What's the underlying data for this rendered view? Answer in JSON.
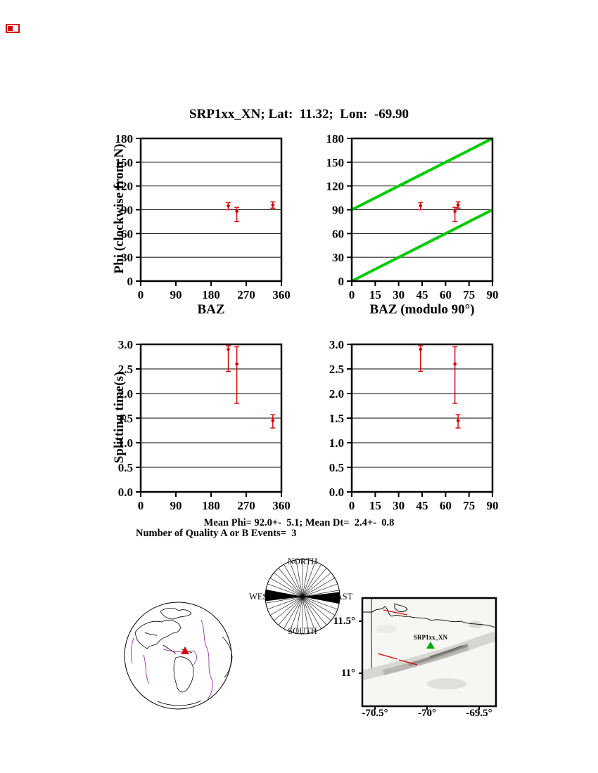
{
  "page": {
    "title": "SRP1xx_XN; Lat:  11.32;  Lon:  -69.90"
  },
  "stats": {
    "mean_line": "Mean Phi= 92.0+-  5.1; Mean Dt=  2.4+-  0.8",
    "events_line": "Number of Quality A or B Events=  3"
  },
  "chart_data": [
    {
      "id": "phi_baz",
      "type": "scatter",
      "title": "",
      "xlabel": "BAZ",
      "ylabel": "Phi (clockwise from N)",
      "xlim": [
        0,
        360
      ],
      "ylim": [
        0,
        180
      ],
      "xticks": [
        0,
        90,
        180,
        270,
        360
      ],
      "yticks": [
        0,
        30,
        60,
        90,
        120,
        150,
        180
      ],
      "xdec": 0,
      "ydec": 0,
      "grid": "horizontal",
      "marker_color": "#d40000",
      "points": [
        {
          "x": 224,
          "y": 95,
          "lo": 90,
          "hi": 99
        },
        {
          "x": 246,
          "y": 88,
          "lo": 75,
          "hi": 93
        },
        {
          "x": 338,
          "y": 96,
          "lo": 92,
          "hi": 100
        }
      ]
    },
    {
      "id": "phi_mod",
      "type": "scatter",
      "title": "",
      "xlabel": "BAZ (modulo 90°)",
      "ylabel": "Phi (clockwise from N)",
      "xlim": [
        0,
        90
      ],
      "ylim": [
        0,
        180
      ],
      "xticks": [
        0,
        15,
        30,
        45,
        60,
        75,
        90
      ],
      "yticks": [
        0,
        30,
        60,
        90,
        120,
        150,
        180
      ],
      "xdec": 0,
      "ydec": 0,
      "grid": "horizontal",
      "marker_color": "#d40000",
      "green_color": "#00cc00",
      "green_lines": [
        {
          "x1": 0,
          "y1": 90,
          "x2": 90,
          "y2": 180
        },
        {
          "x1": 0,
          "y1": 0,
          "x2": 90,
          "y2": 90
        }
      ],
      "points": [
        {
          "x": 44,
          "y": 95,
          "lo": 90,
          "hi": 99
        },
        {
          "x": 66,
          "y": 88,
          "lo": 75,
          "hi": 93
        },
        {
          "x": 68,
          "y": 96,
          "lo": 92,
          "hi": 100
        }
      ]
    },
    {
      "id": "dt_baz",
      "type": "scatter",
      "title": "",
      "xlabel": "",
      "ylabel": "Splitting time(s)",
      "xlim": [
        0,
        360
      ],
      "ylim": [
        0,
        3
      ],
      "xticks": [
        0,
        90,
        180,
        270,
        360
      ],
      "yticks": [
        0,
        0.5,
        1,
        1.5,
        2,
        2.5,
        3
      ],
      "xdec": 0,
      "ydec": 1,
      "grid": "horizontal",
      "marker_color": "#d40000",
      "points": [
        {
          "x": 224,
          "y": 2.9,
          "lo": 2.45,
          "hi": 2.97
        },
        {
          "x": 246,
          "y": 2.6,
          "lo": 1.8,
          "hi": 2.95
        },
        {
          "x": 338,
          "y": 1.45,
          "lo": 1.3,
          "hi": 1.57
        }
      ]
    },
    {
      "id": "dt_mod",
      "type": "scatter",
      "title": "",
      "xlabel": "",
      "ylabel": "Splitting time(s)",
      "xlim": [
        0,
        90
      ],
      "ylim": [
        0,
        3
      ],
      "xticks": [
        0,
        15,
        30,
        45,
        60,
        75,
        90
      ],
      "yticks": [
        0,
        0.5,
        1,
        1.5,
        2,
        2.5,
        3
      ],
      "xdec": 0,
      "ydec": 1,
      "grid": "horizontal",
      "marker_color": "#d40000",
      "points": [
        {
          "x": 44,
          "y": 2.9,
          "lo": 2.45,
          "hi": 2.97
        },
        {
          "x": 66,
          "y": 2.6,
          "lo": 1.8,
          "hi": 2.95
        },
        {
          "x": 68,
          "y": 1.45,
          "lo": 1.3,
          "hi": 1.57
        }
      ]
    }
  ],
  "compass": {
    "labels": {
      "north": "NORTH",
      "south": "SOUTH",
      "east": "EAST",
      "west": "WEST"
    },
    "fast_azimuth_deg": 92,
    "wedge_half_width_deg": 9,
    "spoke_step_deg": 10
  },
  "map": {
    "station_label": "SRP1xx_XN",
    "lat_ticks": [
      "11.5°",
      "11°"
    ],
    "lon_ticks": [
      "-70.5°",
      "-70°",
      "-69.5°"
    ]
  }
}
